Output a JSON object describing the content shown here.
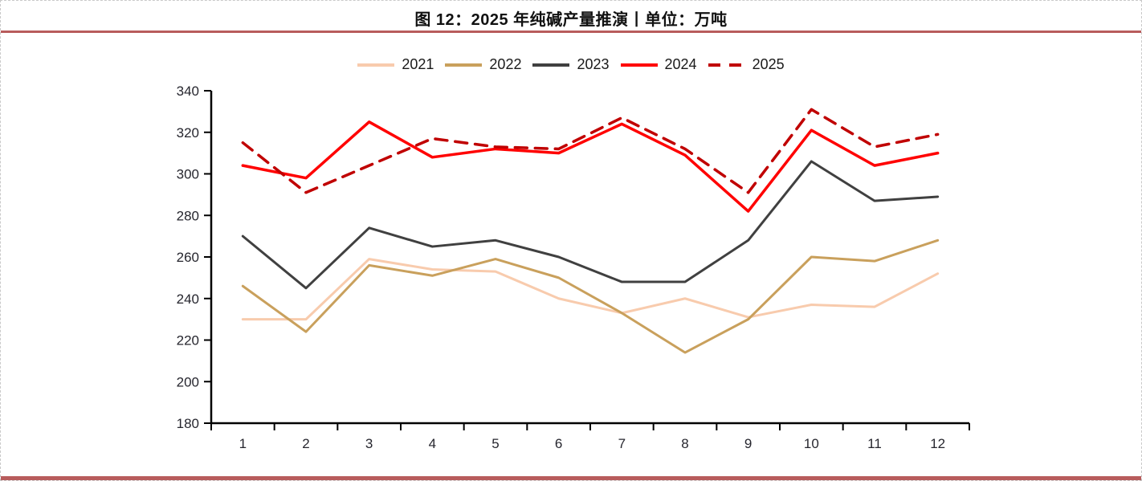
{
  "page": {
    "title": "图 12：2025 年纯碱产量推演丨单位：万吨",
    "accent_rule_color": "#b85c5c",
    "bottom_bar_color": "#b85c5c",
    "border_color": "#c9c9c9",
    "background": "#ffffff"
  },
  "chart_data": {
    "type": "line",
    "title": "图 12：2025 年纯碱产量推演丨单位：万吨",
    "unit": "万吨",
    "categories": [
      "1",
      "2",
      "3",
      "4",
      "5",
      "6",
      "7",
      "8",
      "9",
      "10",
      "11",
      "12"
    ],
    "xlabel": "",
    "ylabel": "",
    "ylim": [
      180,
      340
    ],
    "yticks": [
      180,
      200,
      220,
      240,
      260,
      280,
      300,
      320,
      340
    ],
    "grid": false,
    "legend_position": "top-center",
    "axis_color": "#000000",
    "tick_label_color": "#26262e",
    "series": [
      {
        "name": "2021",
        "color": "#f8cbad",
        "style": "solid",
        "values": [
          230,
          230,
          259,
          254,
          253,
          240,
          233,
          240,
          231,
          237,
          236,
          252
        ]
      },
      {
        "name": "2022",
        "color": "#c9a05c",
        "style": "solid",
        "values": [
          246,
          224,
          256,
          251,
          259,
          250,
          233,
          214,
          230,
          260,
          258,
          268
        ]
      },
      {
        "name": "2023",
        "color": "#404040",
        "style": "solid",
        "values": [
          270,
          245,
          274,
          265,
          268,
          260,
          248,
          248,
          268,
          306,
          287,
          289
        ]
      },
      {
        "name": "2024",
        "color": "#ff0000",
        "style": "solid",
        "values": [
          304,
          298,
          325,
          308,
          312,
          310,
          324,
          309,
          282,
          321,
          304,
          310
        ]
      },
      {
        "name": "2025",
        "color": "#c00000",
        "style": "dashed",
        "values": [
          315,
          291,
          304,
          317,
          313,
          312,
          327,
          312,
          291,
          331,
          313,
          319
        ]
      }
    ]
  }
}
